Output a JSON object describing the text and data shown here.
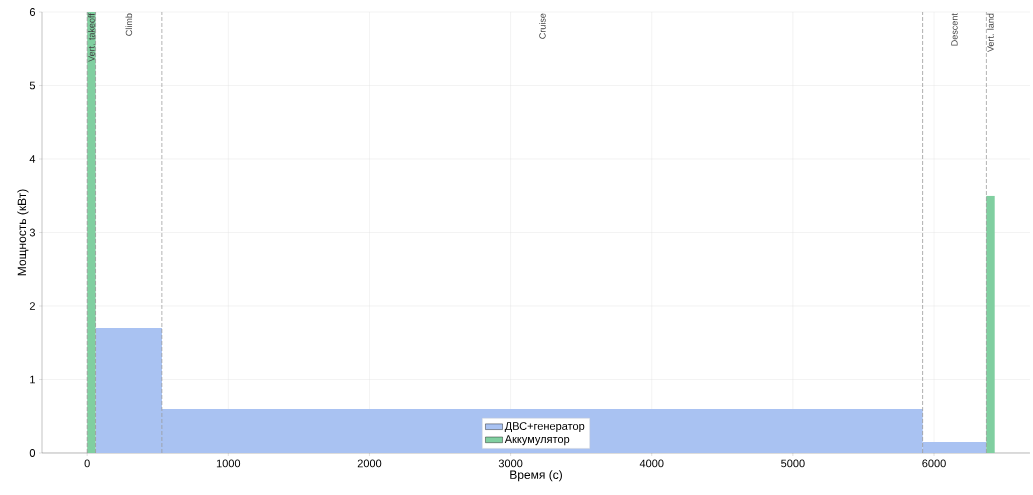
{
  "chart_data": {
    "type": "histogram",
    "xlabel": "Время (с)",
    "ylabel": "Мощность (кВт)",
    "bins": [
      0,
      60,
      530,
      5920,
      6370,
      6430
    ],
    "series": [
      {
        "name": "ДВС+генератор",
        "color": "#a9c2f2",
        "values": [
          null,
          1.7,
          0.6,
          0.15,
          null
        ]
      },
      {
        "name": "Аккумулятор",
        "color": "#80cfa0",
        "values": [
          6,
          null,
          null,
          null,
          3.5
        ]
      }
    ],
    "xlim": [
      -320,
      6680
    ],
    "ylim": [
      0,
      6
    ],
    "xticks": [
      0,
      1000,
      2000,
      3000,
      4000,
      5000,
      6000
    ],
    "yticks": [
      0,
      1,
      2,
      3,
      4,
      5,
      6
    ],
    "ref_lines": [
      {
        "axis": "x",
        "value": 0,
        "color": "#999999",
        "line_style": "dashed"
      },
      {
        "axis": "x",
        "value": 60,
        "color": "#999999",
        "line_style": "dashed"
      },
      {
        "axis": "x",
        "value": 530,
        "color": "#999999",
        "line_style": "dashed"
      },
      {
        "axis": "x",
        "value": 5920,
        "color": "#999999",
        "line_style": "dashed"
      },
      {
        "axis": "x",
        "value": 6370,
        "color": "#999999",
        "line_style": "dashed"
      }
    ],
    "annotations": [
      "Vert. takeoff",
      "Climb",
      "Cruise",
      "Descent",
      "Vert. land"
    ],
    "grid": true,
    "legend": "bottom"
  }
}
